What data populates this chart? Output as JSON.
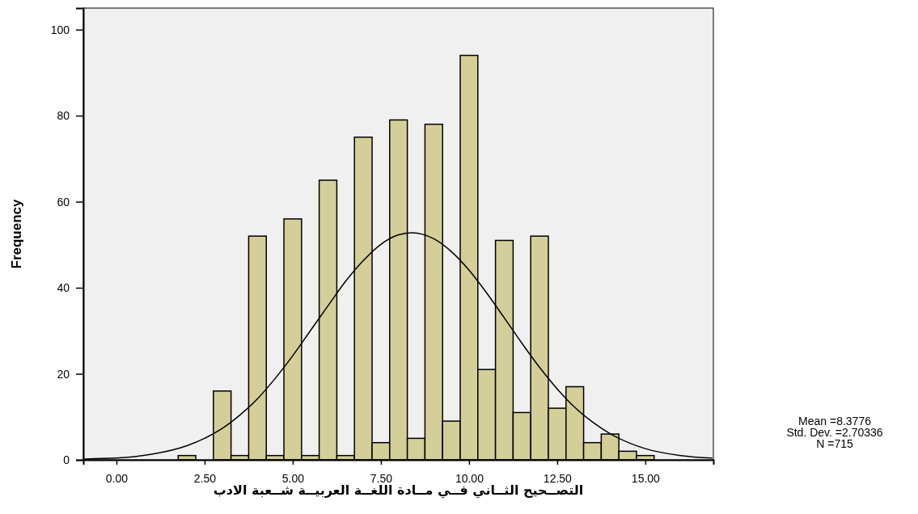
{
  "chart_data": {
    "type": "histogram",
    "xlabel": "التصــحيح الثــاني فــي مــادة اللغــة العربيــة شــعبة الادب",
    "ylabel": "Frequency",
    "bins": [
      1.75,
      2.25,
      2.75,
      3.25,
      3.75,
      4.25,
      4.75,
      5.25,
      5.75,
      6.25,
      6.75,
      7.25,
      7.75,
      8.25,
      8.75,
      9.25,
      9.75,
      10.25,
      10.75,
      11.25,
      11.75,
      12.25,
      12.75,
      13.25,
      13.75,
      14.25,
      14.75,
      15.25
    ],
    "values": [
      1,
      0,
      16,
      1,
      52,
      1,
      56,
      1,
      65,
      1,
      75,
      4,
      79,
      5,
      78,
      9,
      94,
      21,
      51,
      11,
      52,
      12,
      17,
      4,
      6,
      2,
      1
    ],
    "color": "#d4cf99",
    "series": [
      {
        "type": "line",
        "color": "#000000",
        "x": [
          -0.9,
          0,
          1,
          2,
          2.5,
          3,
          3.5,
          4,
          4.5,
          5,
          5.5,
          6,
          6.5,
          7,
          7.5,
          8,
          8.3776,
          9,
          9.5,
          10,
          10.5,
          11,
          11.5,
          12,
          12.5,
          13,
          13.5,
          14,
          15,
          16,
          16.9
        ],
        "values": [
          0.2,
          0.4,
          1.3,
          3.3,
          5.0,
          7.3,
          10.4,
          14.2,
          18.9,
          24.2,
          30.0,
          35.8,
          41.5,
          46.3,
          50.1,
          52.3,
          52.8,
          51.4,
          48.4,
          44.1,
          38.8,
          33.0,
          27.1,
          21.5,
          16.5,
          12.2,
          8.8,
          6.1,
          2.6,
          1.0,
          0.4
        ]
      }
    ],
    "xlim": [
      -0.94,
      16.93
    ],
    "ylim": [
      0,
      105
    ],
    "xticks": [
      {
        "value": 0,
        "label": "0.00"
      },
      {
        "value": 2.5,
        "label": "2.50"
      },
      {
        "value": 5,
        "label": "5.00"
      },
      {
        "value": 7.5,
        "label": "7.50"
      },
      {
        "value": 10,
        "label": "10.00"
      },
      {
        "value": 12.5,
        "label": "12.50"
      },
      {
        "value": 15,
        "label": "15.00"
      }
    ],
    "yticks": [
      0,
      20,
      40,
      60,
      80,
      100
    ],
    "grid": false,
    "annotations": [
      "Mean =8.3776",
      "Std. Dev. =2.70336",
      "N =715"
    ]
  }
}
